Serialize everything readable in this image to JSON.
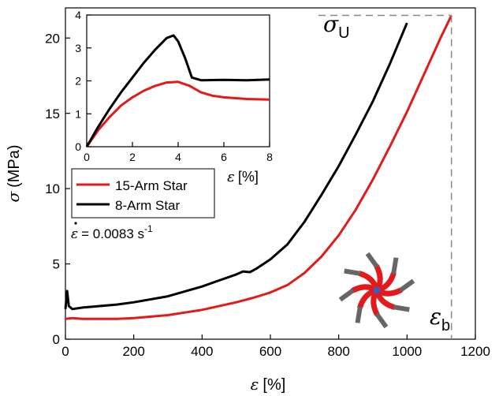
{
  "chart_data": [
    {
      "type": "line",
      "title": "",
      "xlabel_symbol": "ε",
      "xlabel_unit": "[%]",
      "ylabel_symbol": "σ",
      "ylabel_unit": "(MPa)",
      "xlim": [
        0,
        1200
      ],
      "ylim": [
        0,
        22
      ],
      "xticks": [
        0,
        200,
        400,
        600,
        800,
        1000,
        1200
      ],
      "yticks": [
        0,
        5,
        10,
        15,
        20
      ],
      "legend_position": "middle-left",
      "legend_note_symbol": "ε",
      "legend_note_text": "= 0.0083 s",
      "legend_note_exp": "-1",
      "series": [
        {
          "name": "15-Arm Star",
          "color": "#e31a1c",
          "points": [
            [
              0,
              1.35
            ],
            [
              20,
              1.4
            ],
            [
              50,
              1.35
            ],
            [
              100,
              1.35
            ],
            [
              150,
              1.35
            ],
            [
              200,
              1.4
            ],
            [
              300,
              1.6
            ],
            [
              400,
              1.95
            ],
            [
              500,
              2.45
            ],
            [
              550,
              2.75
            ],
            [
              600,
              3.1
            ],
            [
              650,
              3.6
            ],
            [
              700,
              4.4
            ],
            [
              750,
              5.5
            ],
            [
              800,
              6.9
            ],
            [
              850,
              8.6
            ],
            [
              900,
              10.6
            ],
            [
              950,
              12.8
            ],
            [
              1000,
              15.1
            ],
            [
              1050,
              17.6
            ],
            [
              1100,
              20.1
            ],
            [
              1130,
              21.5
            ]
          ]
        },
        {
          "name": "8-Arm Star",
          "color": "#000000",
          "points": [
            [
              0,
              2.0
            ],
            [
              5,
              3.2
            ],
            [
              10,
              2.2
            ],
            [
              20,
              2.0
            ],
            [
              50,
              2.1
            ],
            [
              100,
              2.2
            ],
            [
              150,
              2.3
            ],
            [
              200,
              2.45
            ],
            [
              300,
              2.85
            ],
            [
              400,
              3.5
            ],
            [
              450,
              3.9
            ],
            [
              500,
              4.3
            ],
            [
              520,
              4.5
            ],
            [
              540,
              4.45
            ],
            [
              560,
              4.7
            ],
            [
              600,
              5.3
            ],
            [
              650,
              6.3
            ],
            [
              700,
              7.8
            ],
            [
              750,
              9.6
            ],
            [
              800,
              11.5
            ],
            [
              850,
              13.6
            ],
            [
              900,
              15.8
            ],
            [
              950,
              18.3
            ],
            [
              1000,
              21.0
            ]
          ]
        }
      ],
      "annotations": {
        "sigma_u": {
          "symbol": "σ",
          "sub": "U",
          "value": 21.5
        },
        "eps_b": {
          "symbol": "ε",
          "sub": "b",
          "value": 1130
        }
      }
    },
    {
      "type": "line",
      "title": "",
      "xlabel_symbol": "ε",
      "xlabel_unit": "[%]",
      "ylabel": "",
      "xlim": [
        0,
        8
      ],
      "ylim": [
        0,
        4
      ],
      "xticks": [
        0,
        2,
        4,
        6,
        8
      ],
      "yticks": [
        0,
        1,
        2,
        3,
        4
      ],
      "series": [
        {
          "name": "15-Arm Star",
          "color": "#e31a1c",
          "points": [
            [
              0,
              0
            ],
            [
              0.5,
              0.5
            ],
            [
              1,
              0.9
            ],
            [
              1.5,
              1.25
            ],
            [
              2,
              1.5
            ],
            [
              2.5,
              1.7
            ],
            [
              3,
              1.85
            ],
            [
              3.5,
              1.95
            ],
            [
              4,
              1.97
            ],
            [
              4.5,
              1.85
            ],
            [
              5,
              1.65
            ],
            [
              5.5,
              1.55
            ],
            [
              6,
              1.5
            ],
            [
              7,
              1.45
            ],
            [
              8,
              1.43
            ]
          ]
        },
        {
          "name": "8-Arm Star",
          "color": "#000000",
          "points": [
            [
              0,
              0
            ],
            [
              0.5,
              0.6
            ],
            [
              1,
              1.15
            ],
            [
              1.5,
              1.65
            ],
            [
              2,
              2.1
            ],
            [
              2.5,
              2.55
            ],
            [
              3,
              2.95
            ],
            [
              3.5,
              3.3
            ],
            [
              3.8,
              3.38
            ],
            [
              4,
              3.2
            ],
            [
              4.3,
              2.7
            ],
            [
              4.6,
              2.1
            ],
            [
              5,
              2.02
            ],
            [
              6,
              2.03
            ],
            [
              7,
              2.02
            ],
            [
              8,
              2.04
            ]
          ]
        }
      ]
    }
  ],
  "molecule_icon": "star-polymer-icon",
  "colors": {
    "red": "#e31a1c",
    "black": "#000000",
    "gray": "#666666",
    "core": "#3b5fc0"
  }
}
